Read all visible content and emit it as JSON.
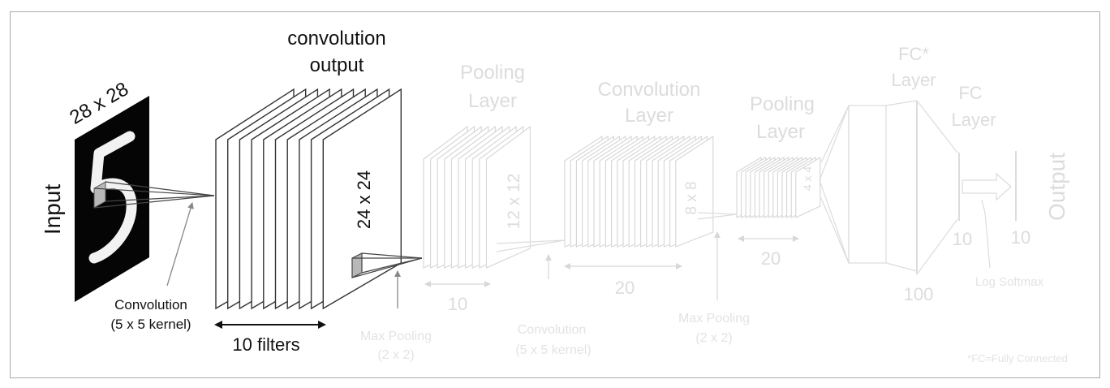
{
  "labels": {
    "conv_output_line1": "convolution",
    "conv_output_line2": "output",
    "input_size": "28 x 28",
    "input": "Input",
    "conv_size": "24 x 24",
    "conv1_line1": "Convolution",
    "conv1_line2": "(5 x 5 kernel)",
    "filters": "10 filters",
    "pool1_line1": "Pooling",
    "pool1_line2": "Layer",
    "pool1_size": "12 x 12",
    "pool1_depth": "10",
    "maxpool1_line1": "Max Pooling",
    "maxpool1_line2": "(2 x 2)",
    "conv2_title1": "Convolution",
    "conv2_title2": "Layer",
    "conv2_size": "8 x 8",
    "conv2_depth": "20",
    "conv2_line1": "Convolution",
    "conv2_line2": "(5 x 5 kernel)",
    "pool2_line1": "Pooling",
    "pool2_line2": "Layer",
    "pool2_size": "4 x 4",
    "pool2_depth": "20",
    "maxpool2_line1": "Max Pooling",
    "maxpool2_line2": "(2 x 2)",
    "fc1_line1": "FC*",
    "fc1_line2": "Layer",
    "fc1_units": "100",
    "fc2_line1": "FC",
    "fc2_line2": "Layer",
    "fc2_units": "10",
    "output_units": "10",
    "log_softmax": "Log Softmax",
    "output": "Output",
    "footnote": "*FC=Fully Connected"
  },
  "colors": {
    "border": "#a9a9a9",
    "dark_line": "#333333",
    "faint_line": "#d8d8d8",
    "dark_text": "#111111",
    "faint_text": "#dcdcdc"
  }
}
